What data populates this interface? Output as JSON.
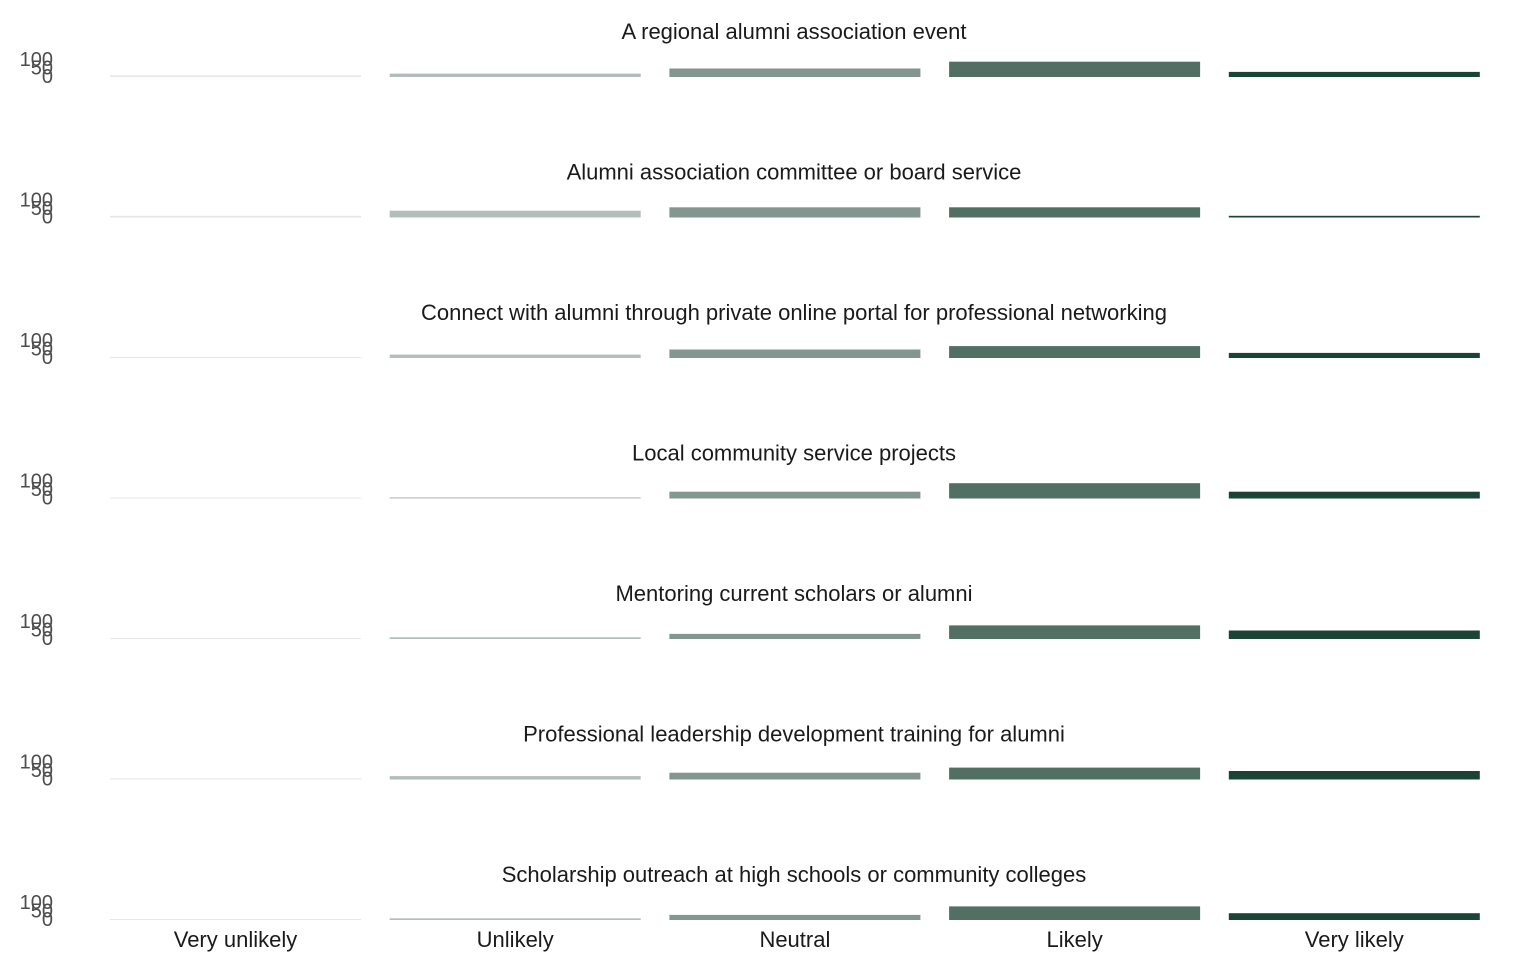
{
  "chart_data": {
    "type": "bar",
    "layout": "small multiples",
    "categories": [
      "Very unlikely",
      "Unlikely",
      "Neutral",
      "Likely",
      "Very likely"
    ],
    "category_colors": [
      "#e6e8e7",
      "#b3bdb9",
      "#839690",
      "#526f64",
      "#1c4436"
    ],
    "yticks": [
      0,
      50,
      100
    ],
    "ylim": [
      0,
      100
    ],
    "value_unit": "percent",
    "grid": false,
    "legend": "none",
    "panels": [
      {
        "title": "A regional alumni association event",
        "values": [
          1,
          2,
          5,
          9,
          3
        ]
      },
      {
        "title": "Alumni association committee or board service",
        "values": [
          1,
          4,
          6,
          6,
          1
        ]
      },
      {
        "title": "Connect with alumni through private online portal for professional networking",
        "values": [
          0.5,
          2,
          5,
          7,
          3
        ]
      },
      {
        "title": "Local community service projects",
        "values": [
          0.5,
          0.7,
          4,
          9,
          4
        ]
      },
      {
        "title": "Mentoring current scholars or alumni",
        "values": [
          0.5,
          1,
          3,
          8,
          5
        ]
      },
      {
        "title": "Professional leadership development training for alumni",
        "values": [
          0.7,
          2,
          4,
          7,
          5
        ]
      },
      {
        "title": "Scholarship outreach at high schools or community colleges",
        "values": [
          0.5,
          1,
          3,
          8,
          4
        ]
      }
    ]
  }
}
